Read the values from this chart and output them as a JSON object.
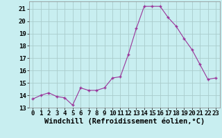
{
  "x": [
    0,
    1,
    2,
    3,
    4,
    5,
    6,
    7,
    8,
    9,
    10,
    11,
    12,
    13,
    14,
    15,
    16,
    17,
    18,
    19,
    20,
    21,
    22,
    23
  ],
  "y": [
    13.7,
    14.0,
    14.2,
    13.9,
    13.8,
    13.2,
    14.6,
    14.4,
    14.4,
    14.6,
    15.4,
    15.5,
    17.3,
    19.4,
    21.2,
    21.2,
    21.2,
    20.3,
    19.6,
    18.6,
    17.7,
    16.5,
    15.3,
    15.4
  ],
  "line_color": "#993399",
  "marker_color": "#993399",
  "bg_color": "#c8eef0",
  "grid_color": "#aacccc",
  "xlabel": "Windchill (Refroidissement éolien,°C)",
  "xlim": [
    -0.5,
    23.5
  ],
  "ylim": [
    13,
    21.6
  ],
  "yticks": [
    13,
    14,
    15,
    16,
    17,
    18,
    19,
    20,
    21
  ],
  "xticks": [
    0,
    1,
    2,
    3,
    4,
    5,
    6,
    7,
    8,
    9,
    10,
    11,
    12,
    13,
    14,
    15,
    16,
    17,
    18,
    19,
    20,
    21,
    22,
    23
  ],
  "tick_label_fontsize": 6.5,
  "xlabel_fontsize": 7.5
}
